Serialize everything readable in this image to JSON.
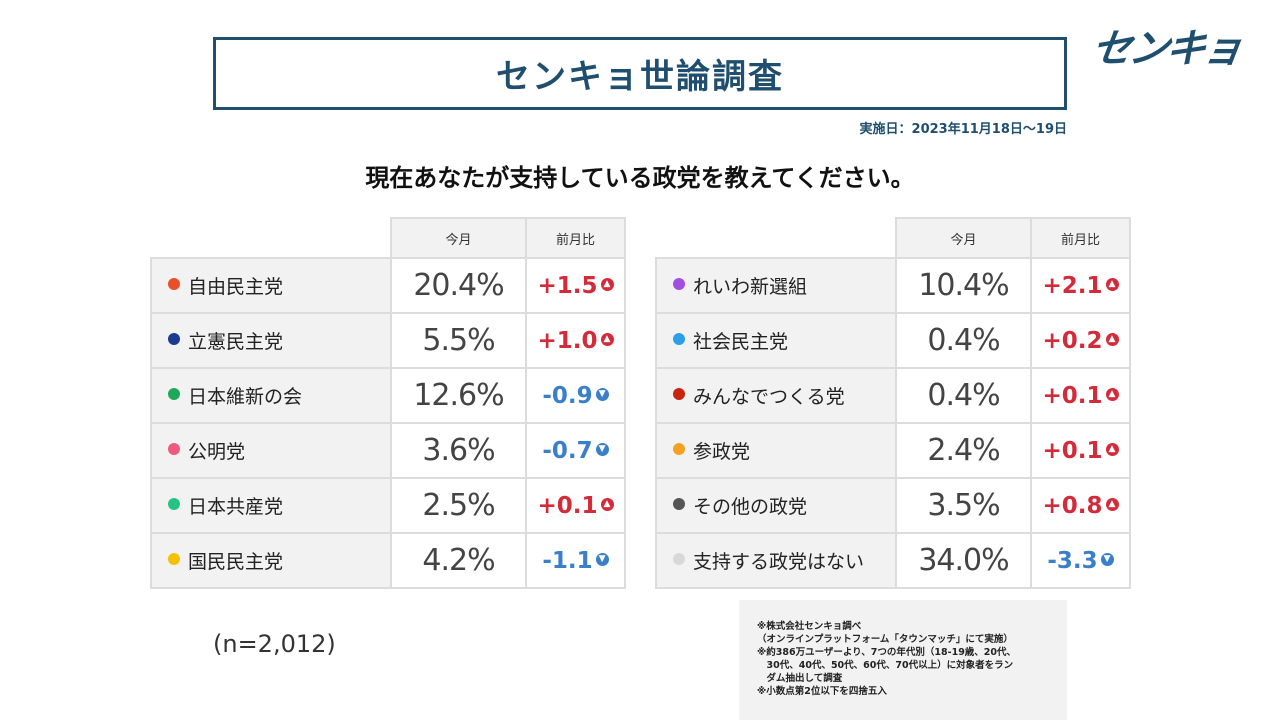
{
  "header": {
    "title": "センキョ世論調査",
    "logo_text": "センキョ",
    "date": "実施日：2023年11月18日～19日"
  },
  "question": "現在あなたが支持している政党を教えてください。",
  "columns": {
    "current": "今月",
    "previous": "前月比"
  },
  "colors": {
    "up": "#d42b3a",
    "down": "#3a7fc9",
    "brand": "#1f4e6e"
  },
  "left_table": [
    {
      "party": "自由民主党",
      "current": "20.4%",
      "change": "+1.5",
      "direction": "up",
      "dot": "#e8502a"
    },
    {
      "party": "立憲民主党",
      "current": "5.5%",
      "change": "+1.0",
      "direction": "up",
      "dot": "#1a3c8f"
    },
    {
      "party": "日本維新の会",
      "current": "12.6%",
      "change": "-0.9",
      "direction": "down",
      "dot": "#1ea85a"
    },
    {
      "party": "公明党",
      "current": "3.6%",
      "change": "-0.7",
      "direction": "down",
      "dot": "#ef5a7c"
    },
    {
      "party": "日本共産党",
      "current": "2.5%",
      "change": "+0.1",
      "direction": "up",
      "dot": "#24c486"
    },
    {
      "party": "国民民主党",
      "current": "4.2%",
      "change": "-1.1",
      "direction": "down",
      "dot": "#f5c000"
    }
  ],
  "right_table": [
    {
      "party": "れいわ新選組",
      "current": "10.4%",
      "change": "+2.1",
      "direction": "up",
      "dot": "#a24ee0"
    },
    {
      "party": "社会民主党",
      "current": "0.4%",
      "change": "+0.2",
      "direction": "up",
      "dot": "#2d9ee8"
    },
    {
      "party": "みんなでつくる党",
      "current": "0.4%",
      "change": "+0.1",
      "direction": "up",
      "dot": "#c8240f"
    },
    {
      "party": "参政党",
      "current": "2.4%",
      "change": "+0.1",
      "direction": "up",
      "dot": "#f5a020"
    },
    {
      "party": "その他の政党",
      "current": "3.5%",
      "change": "+0.8",
      "direction": "up",
      "dot": "#555555"
    },
    {
      "party": "支持する政党はない",
      "current": "34.0%",
      "change": "-3.3",
      "direction": "down",
      "dot": "#d8d8d8"
    }
  ],
  "sample_size": "(n=2,012)",
  "notes": [
    "※株式会社センキョ調べ",
    "（オンラインプラットフォーム「タウンマッチ」にて実施）",
    "※約386万ユーザーより、7つの年代別（18-19歳、20代、",
    "　30代、40代、50代、60代、70代以上）に対象者をラン",
    "　ダム抽出して調査",
    "※小数点第2位以下を四捨五入"
  ]
}
